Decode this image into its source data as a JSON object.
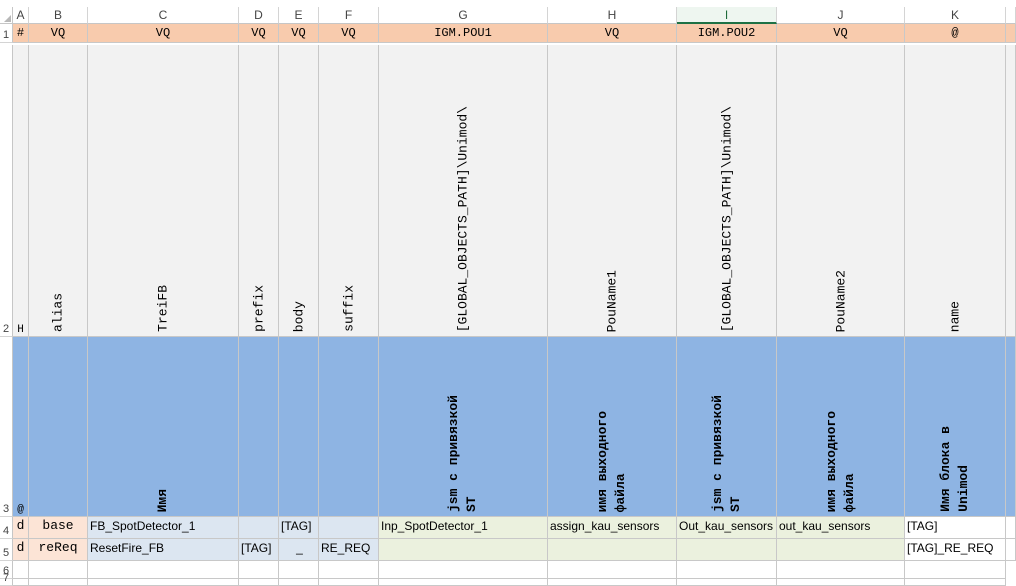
{
  "columns": [
    "A",
    "B",
    "C",
    "D",
    "E",
    "F",
    "G",
    "H",
    "I",
    "J",
    "K"
  ],
  "active_column": "I",
  "rows": {
    "r1": {
      "num": "1",
      "cells": [
        "#",
        "VQ",
        "VQ",
        "VQ",
        "VQ",
        "VQ",
        "IGM.POU1",
        "VQ",
        "IGM.POU2",
        "VQ",
        "@"
      ]
    },
    "r2": {
      "num": "2",
      "cells": [
        "H",
        "alias",
        "TreiFB",
        "prefix",
        "body",
        "suffix",
        "[GLOBAL_OBJECTS_PATH]\\Unimod\\",
        "PouName1",
        "[GLOBAL_OBJECTS_PATH]\\Unimod\\",
        "PouName2",
        "name"
      ]
    },
    "r3": {
      "num": "3",
      "cells": [
        "@",
        "",
        "Имя",
        "",
        "",
        "",
        "jsm с привязкой\nST",
        "имя выходного\nфайла",
        "jsm с привязкой\nST",
        "имя выходного\nфайла",
        "Имя блока в\nUnimod"
      ]
    },
    "r4": {
      "num": "4",
      "cells": [
        "d",
        "base",
        "FB_SpotDetector_1",
        "",
        "[TAG]",
        "",
        "Inp_SpotDetector_1",
        "assign_kau_sensors",
        "Out_kau_sensors",
        "out_kau_sensors",
        "[TAG]"
      ]
    },
    "r5": {
      "num": "5",
      "cells": [
        "d",
        "reReq",
        "ResetFire_FB",
        "[TAG]",
        "_",
        "RE_REQ",
        "",
        "",
        "",
        "",
        "[TAG]_RE_REQ"
      ]
    },
    "r6": {
      "num": "6"
    },
    "r7": {
      "num": "7"
    }
  }
}
